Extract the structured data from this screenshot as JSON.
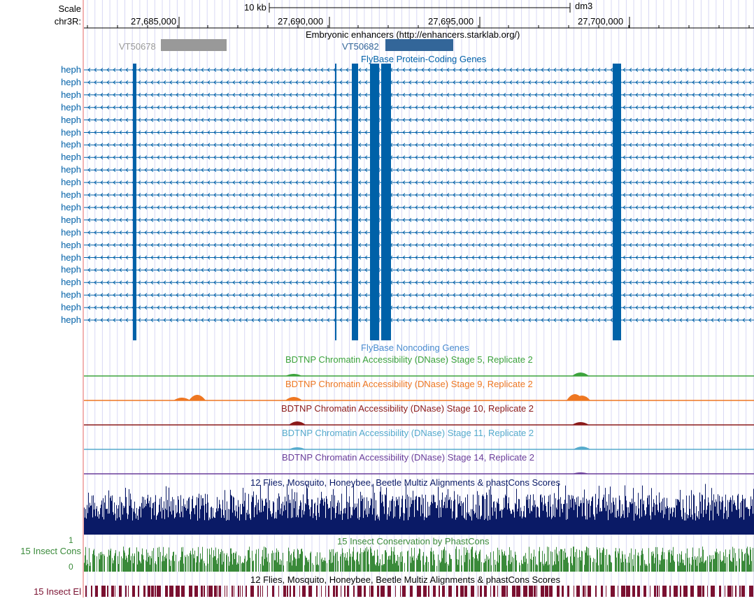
{
  "ruler": {
    "scale_label": "Scale",
    "chrom_label": "chr3R:",
    "scale_bar_label": "10 kb",
    "assembly": "dm3",
    "positions": [
      "27,685,000",
      "27,690,000",
      "27,695,000",
      "27,700,000"
    ]
  },
  "tracks": {
    "enhancers": {
      "title": "Embryonic enhancers (http://enhancers.starklab.org/)",
      "items": [
        {
          "name": "VT50678",
          "color": "#999999"
        },
        {
          "name": "VT50682",
          "color": "#336699"
        }
      ]
    },
    "protein_coding": {
      "title": "FlyBase Protein-Coding Genes",
      "color": "#0061a8",
      "gene_name": "heph",
      "row_count": 21
    },
    "noncoding": {
      "title": "FlyBase Noncoding Genes",
      "color": "#4a8cd0"
    },
    "dnase": [
      {
        "title": "BDTNP Chromatin Accessibility (DNase) Stage 5, Replicate 2",
        "color": "#3ca33c"
      },
      {
        "title": "BDTNP Chromatin Accessibility (DNase) Stage 9, Replicate 2",
        "color": "#ee7722"
      },
      {
        "title": "BDTNP Chromatin Accessibility (DNase) Stage 10, Replicate 2",
        "color": "#8b1a1a"
      },
      {
        "title": "BDTNP Chromatin Accessibility (DNase) Stage 11, Replicate 2",
        "color": "#55aacc"
      },
      {
        "title": "BDTNP Chromatin Accessibility (DNase) Stage 14, Replicate 2",
        "color": "#6a3d9a"
      }
    ],
    "multiz": {
      "title": "12 Flies, Mosquito, Honeybee, Beetle Multiz Alignments & phastCons Scores",
      "color": "#0a1a66"
    },
    "phastcons": {
      "title": "15 Insect Conservation by PhastCons",
      "side_label": "15 Insect Cons",
      "axis_max": "1",
      "axis_min": "0",
      "color": "#3a8a3a"
    },
    "elements": {
      "title": "12 Flies, Mosquito, Honeybee, Beetle Multiz Alignments & phastCons Scores",
      "side_label": "15 Insect El",
      "color": "#7a1030"
    }
  }
}
